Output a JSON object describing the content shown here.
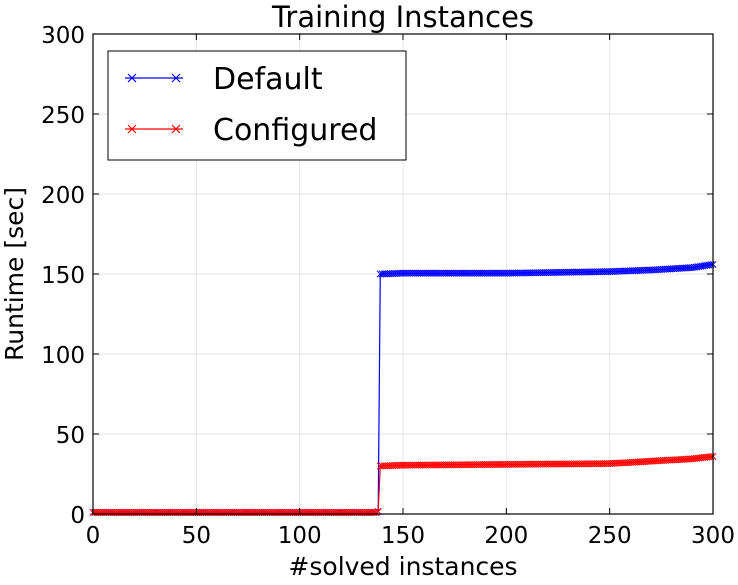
{
  "chart_data": {
    "type": "line",
    "title": "Training Instances",
    "xlabel": "#solved instances",
    "ylabel": "Runtime [sec]",
    "xlim": [
      0,
      300
    ],
    "ylim": [
      0,
      300
    ],
    "xticks": [
      0,
      50,
      100,
      150,
      200,
      250,
      300
    ],
    "yticks": [
      0,
      50,
      100,
      150,
      200,
      250,
      300
    ],
    "grid": true,
    "legend_position": "top-left",
    "marker": "x",
    "series": [
      {
        "name": "Default",
        "color": "#0000ff",
        "points": [
          [
            0,
            1
          ],
          [
            137,
            1
          ],
          [
            138,
            1.5
          ],
          [
            139,
            150
          ],
          [
            150,
            150.5
          ],
          [
            200,
            150.5
          ],
          [
            250,
            151.5
          ],
          [
            270,
            152.5
          ],
          [
            290,
            154
          ],
          [
            300,
            156
          ]
        ]
      },
      {
        "name": "Configured",
        "color": "#ff0000",
        "points": [
          [
            0,
            1
          ],
          [
            137,
            1
          ],
          [
            138,
            1.5
          ],
          [
            139,
            30
          ],
          [
            150,
            30.5
          ],
          [
            200,
            31
          ],
          [
            250,
            31.5
          ],
          [
            270,
            33
          ],
          [
            290,
            34.5
          ],
          [
            300,
            36
          ]
        ]
      }
    ]
  }
}
